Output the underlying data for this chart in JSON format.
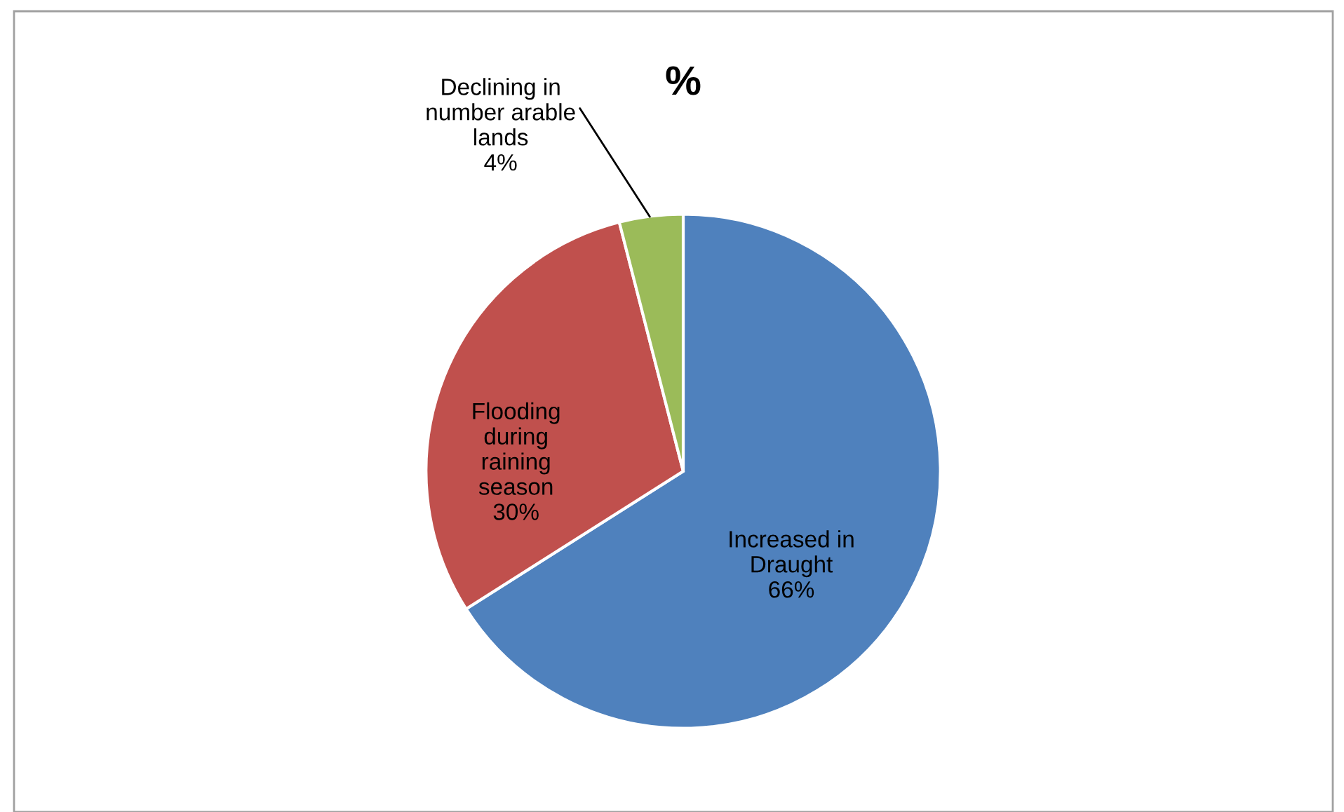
{
  "chart_data": {
    "type": "pie",
    "title": "%",
    "categories": [
      "Increased in Draught",
      "Flooding during raining season",
      "Declining in number arable lands"
    ],
    "values": [
      66,
      30,
      4
    ],
    "colors": [
      "#4f81bd",
      "#c0504d",
      "#9bbb59"
    ],
    "value_labels": [
      "66%",
      "30%",
      "4%"
    ],
    "legend": false
  }
}
